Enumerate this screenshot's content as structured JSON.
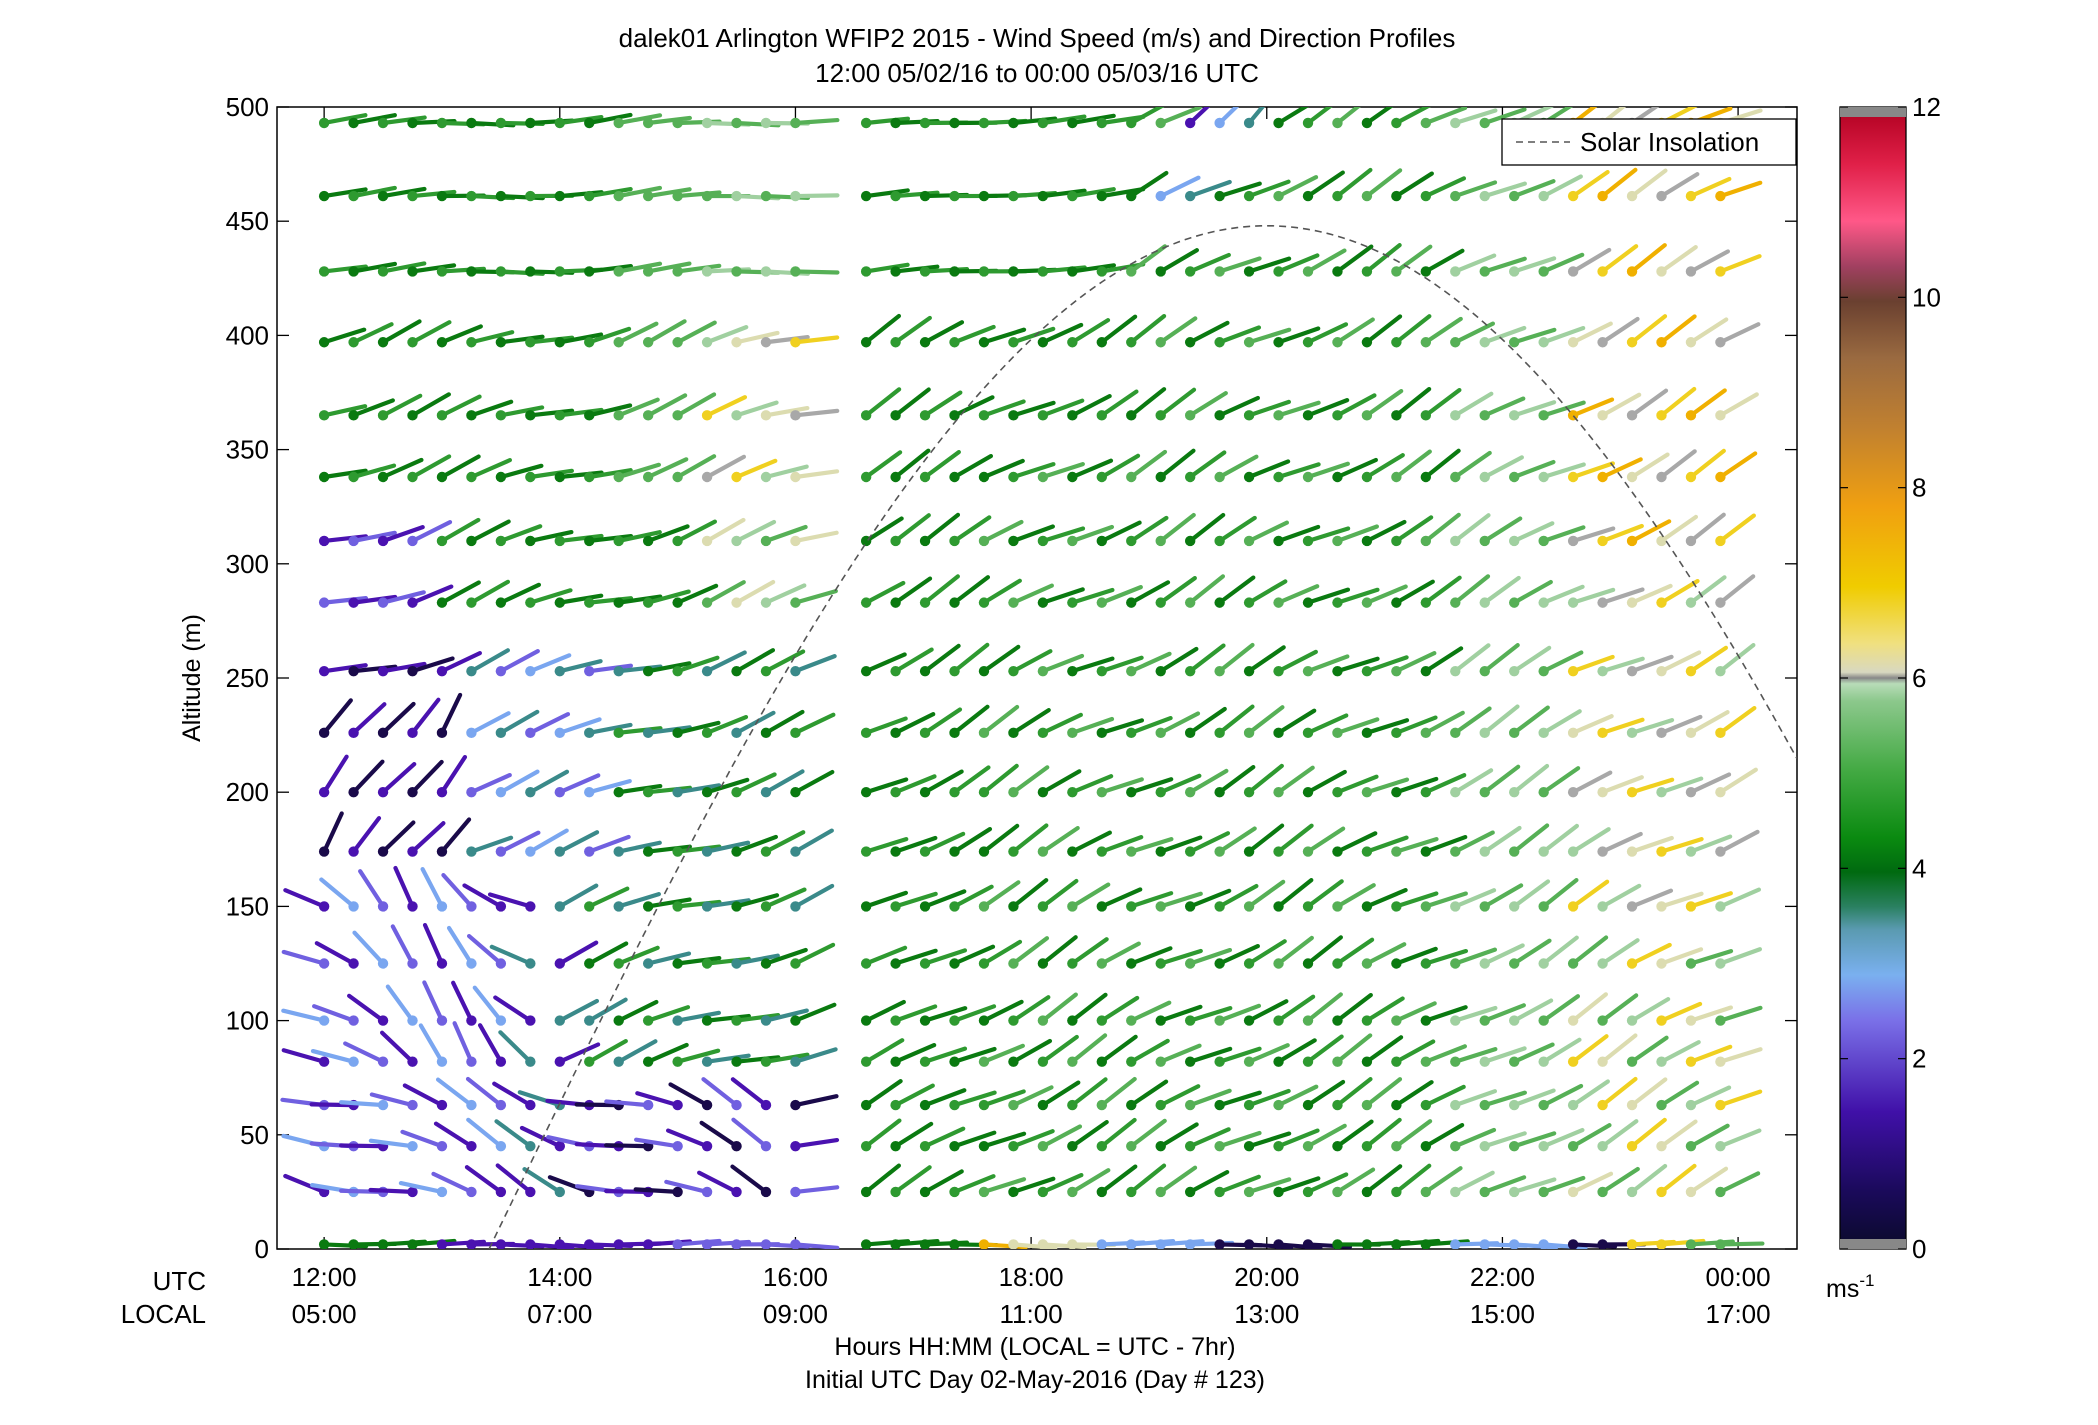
{
  "chart_data": {
    "type": "wind-barb-profile",
    "title": "dalek01 Arlington WFIP2 2015 - Wind Speed (m/s) and Direction Profiles",
    "subtitle": "12:00 05/02/16 to 00:00 05/03/16  UTC",
    "ylabel": "Altitude (m)",
    "ylim": [
      0,
      500
    ],
    "y_ticks": [
      0,
      50,
      100,
      150,
      200,
      250,
      300,
      350,
      400,
      450,
      500
    ],
    "x_range_hours": [
      11.6,
      24.5
    ],
    "utc_row_label": "UTC",
    "local_row_label": "LOCAL",
    "utc_ticks": [
      {
        "hour": 12,
        "label": "12:00"
      },
      {
        "hour": 14,
        "label": "14:00"
      },
      {
        "hour": 16,
        "label": "16:00"
      },
      {
        "hour": 18,
        "label": "18:00"
      },
      {
        "hour": 20,
        "label": "20:00"
      },
      {
        "hour": 22,
        "label": "22:00"
      },
      {
        "hour": 24,
        "label": "00:00"
      }
    ],
    "local_ticks": [
      "05:00",
      "07:00",
      "09:00",
      "11:00",
      "13:00",
      "15:00",
      "17:00"
    ],
    "xlabel": "Hours HH:MM  (LOCAL = UTC - 7hr)",
    "xlabel2": "Initial UTC Day 02-May-2016 (Day # 123)",
    "legend": {
      "label": "Solar Insolation",
      "placement": "top-right"
    },
    "colorbar": {
      "ticks": [
        {
          "value": 0,
          "label": "0"
        },
        {
          "value": 2,
          "label": "2"
        },
        {
          "value": 4,
          "label": "4"
        },
        {
          "value": 6,
          "label": "6"
        },
        {
          "value": 8,
          "label": "8"
        },
        {
          "value": 10,
          "label": "10"
        },
        {
          "value": 12,
          "label": "12"
        }
      ],
      "unit_label": "ms",
      "unit_exponent": "-1",
      "range": [
        0,
        12
      ]
    },
    "levels_m": [
      2,
      25,
      45,
      63,
      82,
      100,
      125,
      150,
      174,
      200,
      226,
      253,
      283,
      310,
      338,
      365,
      397,
      428,
      461,
      493
    ],
    "time_step_hours": 0.25,
    "segment1_hours": [
      12.0,
      16.0
    ],
    "segment2_hours": [
      16.6,
      24.0
    ],
    "solar_curve": {
      "start_hour": 13.4,
      "peak_hour": 20.0,
      "peak_altitude_m": 448,
      "end_hour": 24.5,
      "end_altitude_m": 218
    }
  }
}
